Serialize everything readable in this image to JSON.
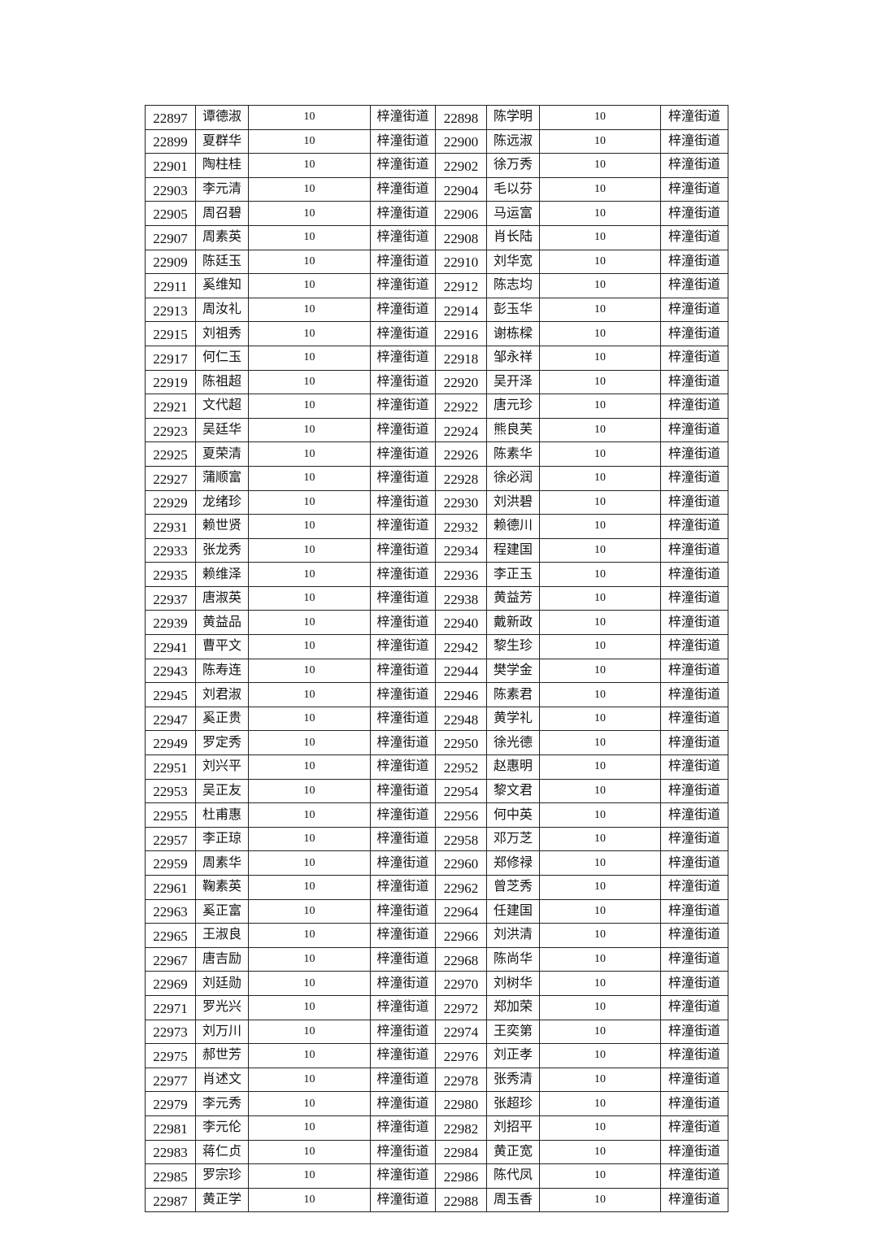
{
  "table": {
    "rows": [
      [
        "22897",
        "谭德淑",
        "10",
        "梓潼街道",
        "22898",
        "陈学明",
        "10",
        "梓潼街道"
      ],
      [
        "22899",
        "夏群华",
        "10",
        "梓潼街道",
        "22900",
        "陈远淑",
        "10",
        "梓潼街道"
      ],
      [
        "22901",
        "陶柱桂",
        "10",
        "梓潼街道",
        "22902",
        "徐万秀",
        "10",
        "梓潼街道"
      ],
      [
        "22903",
        "李元清",
        "10",
        "梓潼街道",
        "22904",
        "毛以芬",
        "10",
        "梓潼街道"
      ],
      [
        "22905",
        "周召碧",
        "10",
        "梓潼街道",
        "22906",
        "马运富",
        "10",
        "梓潼街道"
      ],
      [
        "22907",
        "周素英",
        "10",
        "梓潼街道",
        "22908",
        "肖长陆",
        "10",
        "梓潼街道"
      ],
      [
        "22909",
        "陈廷玉",
        "10",
        "梓潼街道",
        "22910",
        "刘华宽",
        "10",
        "梓潼街道"
      ],
      [
        "22911",
        "奚维知",
        "10",
        "梓潼街道",
        "22912",
        "陈志均",
        "10",
        "梓潼街道"
      ],
      [
        "22913",
        "周汝礼",
        "10",
        "梓潼街道",
        "22914",
        "彭玉华",
        "10",
        "梓潼街道"
      ],
      [
        "22915",
        "刘祖秀",
        "10",
        "梓潼街道",
        "22916",
        "谢栋樑",
        "10",
        "梓潼街道"
      ],
      [
        "22917",
        "何仁玉",
        "10",
        "梓潼街道",
        "22918",
        "邹永祥",
        "10",
        "梓潼街道"
      ],
      [
        "22919",
        "陈祖超",
        "10",
        "梓潼街道",
        "22920",
        "吴开泽",
        "10",
        "梓潼街道"
      ],
      [
        "22921",
        "文代超",
        "10",
        "梓潼街道",
        "22922",
        "唐元珍",
        "10",
        "梓潼街道"
      ],
      [
        "22923",
        "吴廷华",
        "10",
        "梓潼街道",
        "22924",
        "熊良芙",
        "10",
        "梓潼街道"
      ],
      [
        "22925",
        "夏荣清",
        "10",
        "梓潼街道",
        "22926",
        "陈素华",
        "10",
        "梓潼街道"
      ],
      [
        "22927",
        "蒲顺富",
        "10",
        "梓潼街道",
        "22928",
        "徐必润",
        "10",
        "梓潼街道"
      ],
      [
        "22929",
        "龙绪珍",
        "10",
        "梓潼街道",
        "22930",
        "刘洪碧",
        "10",
        "梓潼街道"
      ],
      [
        "22931",
        "赖世贤",
        "10",
        "梓潼街道",
        "22932",
        "赖德川",
        "10",
        "梓潼街道"
      ],
      [
        "22933",
        "张龙秀",
        "10",
        "梓潼街道",
        "22934",
        "程建国",
        "10",
        "梓潼街道"
      ],
      [
        "22935",
        "赖维泽",
        "10",
        "梓潼街道",
        "22936",
        "李正玉",
        "10",
        "梓潼街道"
      ],
      [
        "22937",
        "唐淑英",
        "10",
        "梓潼街道",
        "22938",
        "黄益芳",
        "10",
        "梓潼街道"
      ],
      [
        "22939",
        "黄益品",
        "10",
        "梓潼街道",
        "22940",
        "戴新政",
        "10",
        "梓潼街道"
      ],
      [
        "22941",
        "曹平文",
        "10",
        "梓潼街道",
        "22942",
        "黎生珍",
        "10",
        "梓潼街道"
      ],
      [
        "22943",
        "陈寿连",
        "10",
        "梓潼街道",
        "22944",
        "樊学金",
        "10",
        "梓潼街道"
      ],
      [
        "22945",
        "刘君淑",
        "10",
        "梓潼街道",
        "22946",
        "陈素君",
        "10",
        "梓潼街道"
      ],
      [
        "22947",
        "奚正贵",
        "10",
        "梓潼街道",
        "22948",
        "黄学礼",
        "10",
        "梓潼街道"
      ],
      [
        "22949",
        "罗定秀",
        "10",
        "梓潼街道",
        "22950",
        "徐光德",
        "10",
        "梓潼街道"
      ],
      [
        "22951",
        "刘兴平",
        "10",
        "梓潼街道",
        "22952",
        "赵惠明",
        "10",
        "梓潼街道"
      ],
      [
        "22953",
        "吴正友",
        "10",
        "梓潼街道",
        "22954",
        "黎文君",
        "10",
        "梓潼街道"
      ],
      [
        "22955",
        "杜甫惠",
        "10",
        "梓潼街道",
        "22956",
        "何中英",
        "10",
        "梓潼街道"
      ],
      [
        "22957",
        "李正琼",
        "10",
        "梓潼街道",
        "22958",
        "邓万芝",
        "10",
        "梓潼街道"
      ],
      [
        "22959",
        "周素华",
        "10",
        "梓潼街道",
        "22960",
        "郑修禄",
        "10",
        "梓潼街道"
      ],
      [
        "22961",
        "鞠素英",
        "10",
        "梓潼街道",
        "22962",
        "曾芝秀",
        "10",
        "梓潼街道"
      ],
      [
        "22963",
        "奚正富",
        "10",
        "梓潼街道",
        "22964",
        "任建国",
        "10",
        "梓潼街道"
      ],
      [
        "22965",
        "王淑良",
        "10",
        "梓潼街道",
        "22966",
        "刘洪清",
        "10",
        "梓潼街道"
      ],
      [
        "22967",
        "唐吉励",
        "10",
        "梓潼街道",
        "22968",
        "陈尚华",
        "10",
        "梓潼街道"
      ],
      [
        "22969",
        "刘廷勋",
        "10",
        "梓潼街道",
        "22970",
        "刘树华",
        "10",
        "梓潼街道"
      ],
      [
        "22971",
        "罗光兴",
        "10",
        "梓潼街道",
        "22972",
        "郑加荣",
        "10",
        "梓潼街道"
      ],
      [
        "22973",
        "刘万川",
        "10",
        "梓潼街道",
        "22974",
        "王奕第",
        "10",
        "梓潼街道"
      ],
      [
        "22975",
        "郝世芳",
        "10",
        "梓潼街道",
        "22976",
        "刘正孝",
        "10",
        "梓潼街道"
      ],
      [
        "22977",
        "肖述文",
        "10",
        "梓潼街道",
        "22978",
        "张秀清",
        "10",
        "梓潼街道"
      ],
      [
        "22979",
        "李元秀",
        "10",
        "梓潼街道",
        "22980",
        "张超珍",
        "10",
        "梓潼街道"
      ],
      [
        "22981",
        "李元伦",
        "10",
        "梓潼街道",
        "22982",
        "刘招平",
        "10",
        "梓潼街道"
      ],
      [
        "22983",
        "蒋仁贞",
        "10",
        "梓潼街道",
        "22984",
        "黄正宽",
        "10",
        "梓潼街道"
      ],
      [
        "22985",
        "罗宗珍",
        "10",
        "梓潼街道",
        "22986",
        "陈代凤",
        "10",
        "梓潼街道"
      ],
      [
        "22987",
        "黄正学",
        "10",
        "梓潼街道",
        "22988",
        "周玉香",
        "10",
        "梓潼街道"
      ]
    ]
  }
}
